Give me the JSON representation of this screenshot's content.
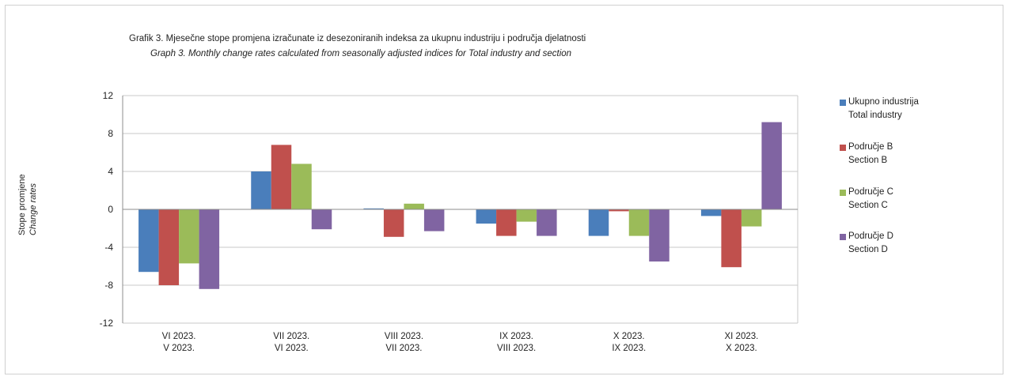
{
  "chart_data": {
    "type": "bar",
    "title": "Grafik 3. Mjesečne stope promjena izračunate iz desezoniranih indeksa za ukupnu industriju i područja djelatnosti",
    "subtitle": "Graph 3. Monthly change rates calculated from seasonally adjusted indices for Total industry and section",
    "ylabel": [
      "Stope promjene",
      "Change rates"
    ],
    "xlabel": "",
    "ylim": [
      -12,
      12
    ],
    "yticks": [
      12,
      8,
      4,
      0,
      -4,
      -8,
      -12
    ],
    "grid": true,
    "legend_position": "right",
    "categories": [
      [
        "VI 2023.",
        "V 2023."
      ],
      [
        "VII 2023.",
        "VI 2023."
      ],
      [
        "VIII 2023.",
        "VII 2023."
      ],
      [
        "IX 2023.",
        "VIII 2023."
      ],
      [
        "X 2023.",
        "IX 2023."
      ],
      [
        "XI 2023.",
        "X 2023."
      ]
    ],
    "series": [
      {
        "name": [
          "Ukupno industrija",
          "Total industry"
        ],
        "color": "#4a7ebb",
        "values": [
          -6.6,
          4.0,
          0.1,
          -1.5,
          -2.8,
          -0.7
        ]
      },
      {
        "name": [
          "Područje B",
          "Section B"
        ],
        "color": "#c0504d",
        "values": [
          -8.0,
          6.8,
          -2.9,
          -2.8,
          -0.2,
          -6.1
        ]
      },
      {
        "name": [
          "Područje C",
          "Section C"
        ],
        "color": "#9bbb59",
        "values": [
          -5.7,
          4.8,
          0.6,
          -1.3,
          -2.8,
          -1.8
        ]
      },
      {
        "name": [
          "Područje D",
          "Section D"
        ],
        "color": "#8064a2",
        "values": [
          -8.4,
          -2.1,
          -2.3,
          -2.8,
          -5.5,
          9.2
        ]
      }
    ]
  }
}
